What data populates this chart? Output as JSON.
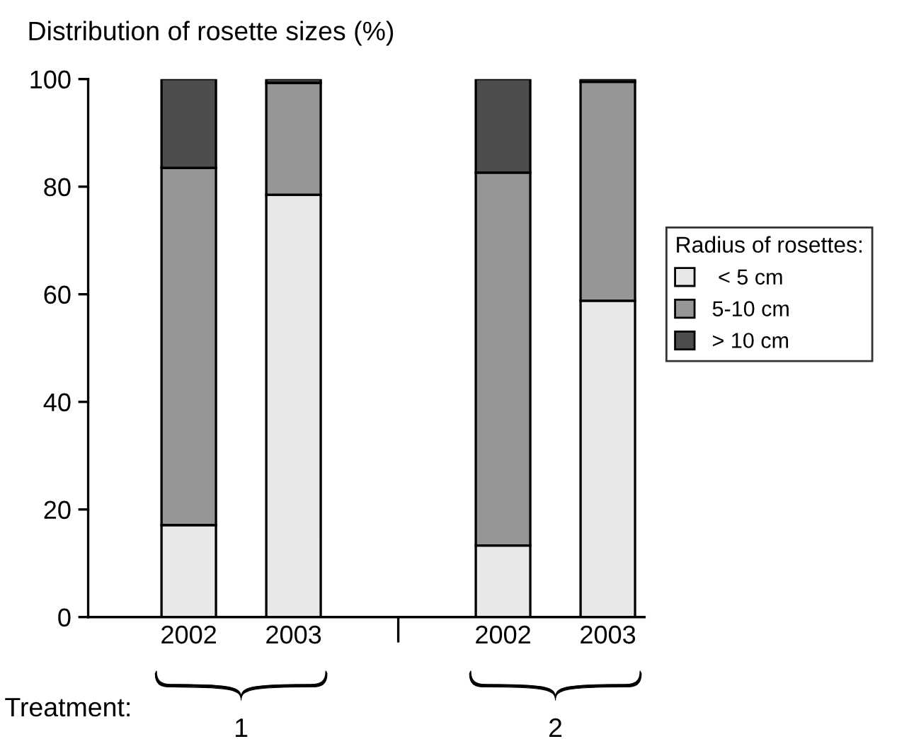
{
  "chart_data": {
    "type": "bar",
    "title": "Distribution of rosette sizes (%)",
    "categories": [
      "2002",
      "2003",
      null,
      "2002",
      "2003"
    ],
    "stacked": true,
    "series": [
      {
        "name": " < 5 cm",
        "color": "#e8e8e8",
        "values": [
          17.1,
          78.5,
          null,
          13.3,
          58.8
        ]
      },
      {
        "name": "5-10 cm",
        "color": "#969696",
        "values": [
          66.4,
          20.8,
          null,
          69.3,
          40.7
        ]
      },
      {
        "name": "> 10 cm",
        "color": "#4d4d4d",
        "values": [
          16.5,
          0.7,
          null,
          17.4,
          0.5
        ]
      }
    ],
    "legend_title": "Radius of rosettes:",
    "legend": "right",
    "ylim": [
      0,
      100
    ],
    "yticks": [
      0,
      20,
      40,
      60,
      80,
      100
    ],
    "grid": false,
    "annotations": [
      "Treatment:",
      "1",
      "2"
    ]
  }
}
